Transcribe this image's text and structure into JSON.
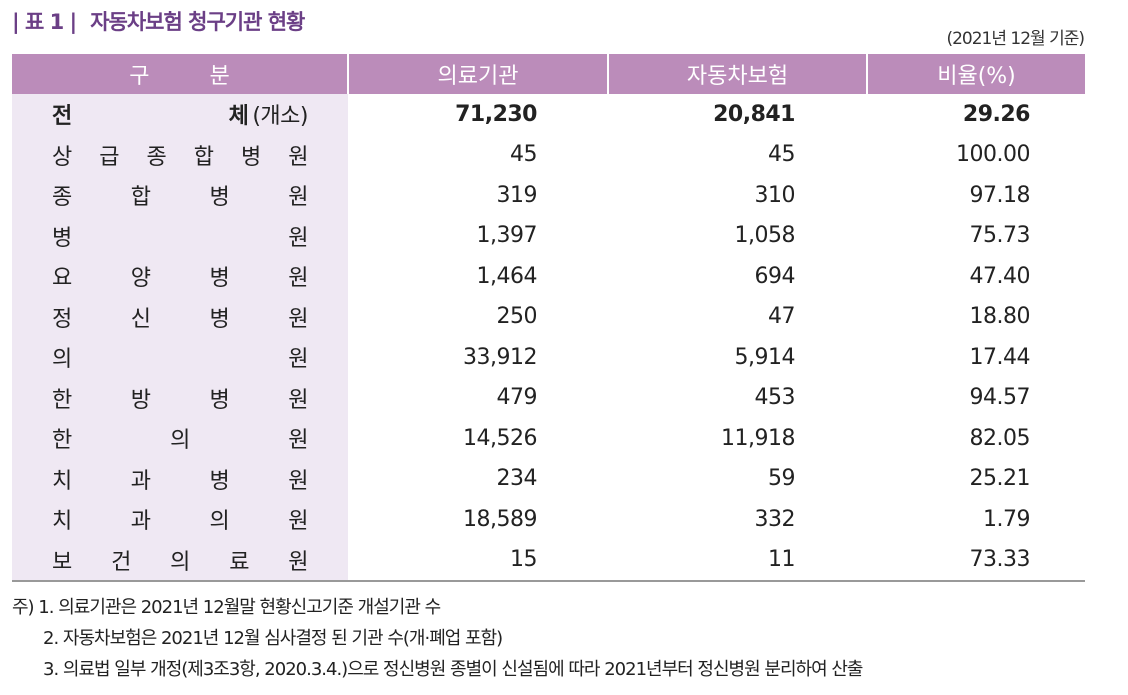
{
  "title": {
    "number": "| 표 1 |",
    "text": "자동차보험 청구기관 현황"
  },
  "basis": "(2021년 12월 기준)",
  "colors": {
    "header_bg": "#bb8cba",
    "label_bg": "#efe8f3",
    "title": "#6b3f86"
  },
  "table": {
    "headers": [
      "구분",
      "의료기관",
      "자동차보험",
      "비율(%)"
    ],
    "rows": [
      {
        "label": "전체",
        "suffix": "(개소)",
        "medical": "71,230",
        "auto": "20,841",
        "ratio": "29.26"
      },
      {
        "label": "상급종합병원",
        "medical": "45",
        "auto": "45",
        "ratio": "100.00"
      },
      {
        "label": "종합병원",
        "medical": "319",
        "auto": "310",
        "ratio": "97.18"
      },
      {
        "label": "병원",
        "medical": "1,397",
        "auto": "1,058",
        "ratio": "75.73"
      },
      {
        "label": "요양병원",
        "medical": "1,464",
        "auto": "694",
        "ratio": "47.40"
      },
      {
        "label": "정신병원",
        "medical": "250",
        "auto": "47",
        "ratio": "18.80"
      },
      {
        "label": "의원",
        "medical": "33,912",
        "auto": "5,914",
        "ratio": "17.44"
      },
      {
        "label": "한방병원",
        "medical": "479",
        "auto": "453",
        "ratio": "94.57"
      },
      {
        "label": "한의원",
        "medical": "14,526",
        "auto": "11,918",
        "ratio": "82.05"
      },
      {
        "label": "치과병원",
        "medical": "234",
        "auto": "59",
        "ratio": "25.21"
      },
      {
        "label": "치과의원",
        "medical": "18,589",
        "auto": "332",
        "ratio": "1.79"
      },
      {
        "label": "보건의료원",
        "medical": "15",
        "auto": "11",
        "ratio": "73.33"
      }
    ]
  },
  "notes": [
    "주) 1. 의료기관은 2021년 12월말 현황신고기준 개설기관 수",
    "2. 자동차보험은 2021년 12월 심사결정 된 기관 수(개·폐업 포함)",
    "3. 의료법 일부 개정(제3조3항, 2020.3.4.)으로 정신병원 종별이 신설됨에 따라 2021년부터 정신병원 분리하여 산출"
  ]
}
